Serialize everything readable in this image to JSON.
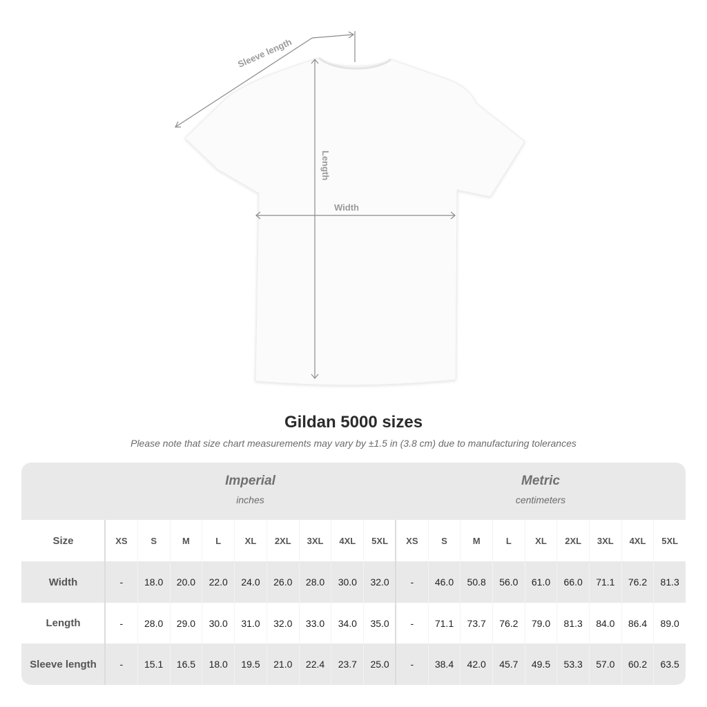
{
  "diagram": {
    "labels": {
      "sleeve_length": "Sleeve length",
      "length": "Length",
      "width": "Width"
    }
  },
  "title": "Gildan 5000 sizes",
  "note": "Please note that size chart measurements may vary by ±1.5 in (3.8 cm) due to manufacturing tolerances",
  "table": {
    "imperial": {
      "heading": "Imperial",
      "unit": "inches"
    },
    "metric": {
      "heading": "Metric",
      "unit": "centimeters"
    },
    "size_label": "Size",
    "sizes": [
      "XS",
      "S",
      "M",
      "L",
      "XL",
      "2XL",
      "3XL",
      "4XL",
      "5XL"
    ],
    "rows": [
      {
        "label": "Width",
        "imperial": [
          "-",
          "18.0",
          "20.0",
          "22.0",
          "24.0",
          "26.0",
          "28.0",
          "30.0",
          "32.0"
        ],
        "metric": [
          "-",
          "46.0",
          "50.8",
          "56.0",
          "61.0",
          "66.0",
          "71.1",
          "76.2",
          "81.3"
        ]
      },
      {
        "label": "Length",
        "imperial": [
          "-",
          "28.0",
          "29.0",
          "30.0",
          "31.0",
          "32.0",
          "33.0",
          "34.0",
          "35.0"
        ],
        "metric": [
          "-",
          "71.1",
          "73.7",
          "76.2",
          "79.0",
          "81.3",
          "84.0",
          "86.4",
          "89.0"
        ]
      },
      {
        "label": "Sleeve length",
        "imperial": [
          "-",
          "15.1",
          "16.5",
          "18.0",
          "19.5",
          "21.0",
          "22.4",
          "23.7",
          "25.0"
        ],
        "metric": [
          "-",
          "38.4",
          "42.0",
          "45.7",
          "49.5",
          "53.3",
          "57.0",
          "60.2",
          "63.5"
        ]
      }
    ]
  }
}
